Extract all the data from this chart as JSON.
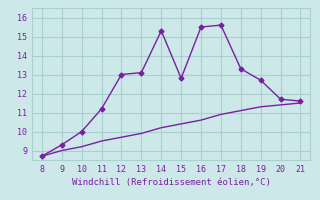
{
  "x": [
    8,
    9,
    10,
    11,
    12,
    13,
    14,
    15,
    16,
    17,
    18,
    19,
    20,
    21
  ],
  "y_main": [
    8.7,
    9.3,
    10.0,
    11.2,
    13.0,
    13.1,
    15.3,
    12.8,
    15.5,
    15.6,
    13.3,
    12.7,
    11.7,
    11.6
  ],
  "y_line": [
    8.7,
    9.0,
    9.2,
    9.5,
    9.7,
    9.9,
    10.2,
    10.4,
    10.6,
    10.9,
    11.1,
    11.3,
    11.4,
    11.5
  ],
  "xlabel": "Windchill (Refroidissement éolien,°C)",
  "xlim": [
    7.5,
    21.5
  ],
  "ylim": [
    8.5,
    16.5
  ],
  "xticks": [
    8,
    9,
    10,
    11,
    12,
    13,
    14,
    15,
    16,
    17,
    18,
    19,
    20,
    21
  ],
  "yticks": [
    9,
    10,
    11,
    12,
    13,
    14,
    15,
    16
  ],
  "line_color": "#7b1fa2",
  "bg_color": "#cce8e8",
  "grid_color": "#aacfcf",
  "tick_label_color": "#7b1fa2",
  "xlabel_color": "#7b1fa2"
}
